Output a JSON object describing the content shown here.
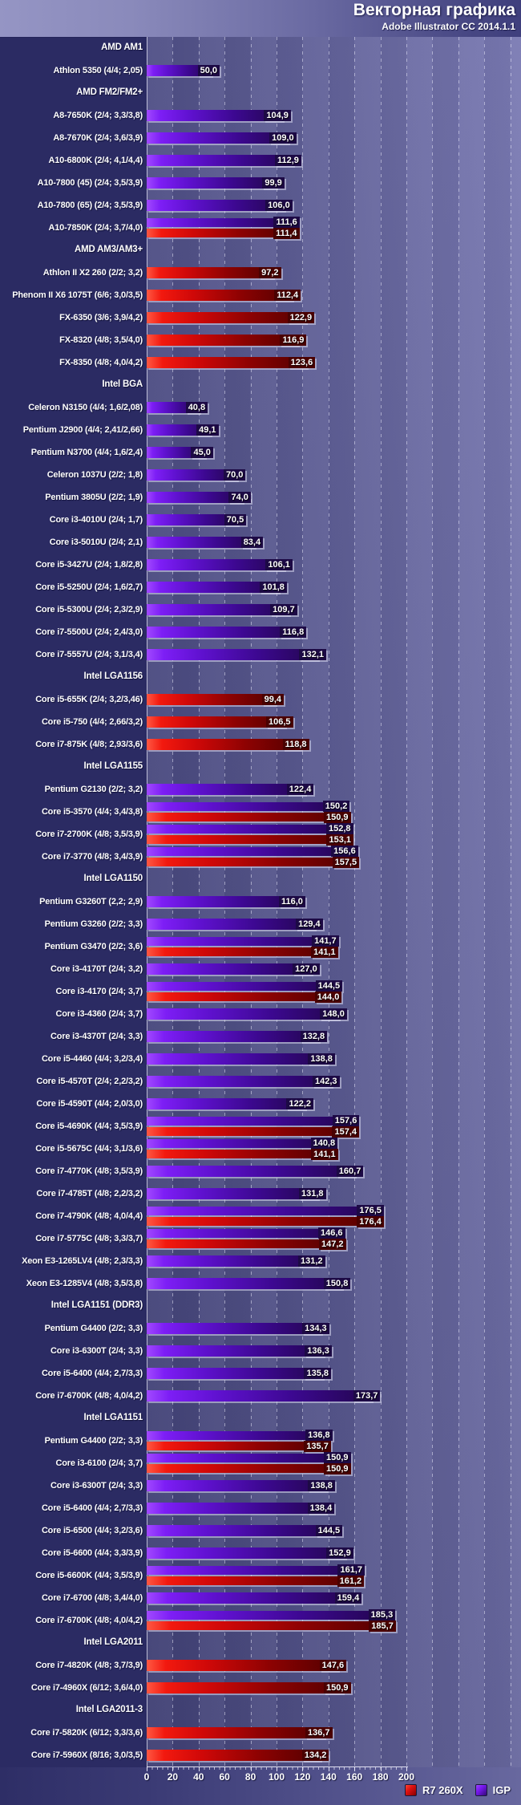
{
  "title": "Векторная графика",
  "subtitle": "Adobe Illustrator CC 2014.1.1",
  "legend": [
    {
      "label": "R7 260X",
      "color": "#dd1111"
    },
    {
      "label": "IGP",
      "color": "#7718ee"
    }
  ],
  "colors": {
    "r7_bright": "#f2190f",
    "r7_dark": "#520000",
    "igp_bright": "#7d1ef5",
    "igp_dark": "#22064e",
    "background_left": "#2b2b63",
    "plot_right": "#7373af"
  },
  "chart_data": {
    "type": "bar",
    "orientation": "horizontal",
    "title": "Векторная графика",
    "subtitle": "Adobe Illustrator CC 2014.1.1",
    "xlim": [
      0,
      200
    ],
    "x_ticks": [
      0,
      20,
      40,
      60,
      80,
      100,
      120,
      140,
      160,
      180,
      200
    ],
    "grid": true,
    "legend_position": "bottom-right",
    "series_names": [
      "R7 260X",
      "IGP"
    ],
    "rows": [
      {
        "header": "AMD AM1"
      },
      {
        "label": "Athlon 5350 (4/4; 2,05)",
        "igp": 50.0,
        "r7": null
      },
      {
        "header": "AMD FM2/FM2+"
      },
      {
        "label": "A8-7650K (2/4; 3,3/3,8)",
        "igp": 104.9,
        "r7": null
      },
      {
        "label": "A8-7670K (2/4; 3,6/3,9)",
        "igp": 109.0,
        "r7": null
      },
      {
        "label": "A10-6800K (2/4; 4,1/4,4)",
        "igp": 112.9,
        "r7": null
      },
      {
        "label": "A10-7800 (45) (2/4; 3,5/3,9)",
        "igp": 99.9,
        "r7": null
      },
      {
        "label": "A10-7800 (65) (2/4; 3,5/3,9)",
        "igp": 106.0,
        "r7": null
      },
      {
        "label": "A10-7850K (2/4; 3,7/4,0)",
        "igp": 111.6,
        "r7": 111.4
      },
      {
        "header": "AMD AM3/AM3+"
      },
      {
        "label": "Athlon II X2 260 (2/2; 3,2)",
        "igp": null,
        "r7": 97.2
      },
      {
        "label": "Phenom II X6 1075T (6/6; 3,0/3,5)",
        "igp": null,
        "r7": 112.4
      },
      {
        "label": "FX-6350 (3/6; 3,9/4,2)",
        "igp": null,
        "r7": 122.9
      },
      {
        "label": "FX-8320 (4/8; 3,5/4,0)",
        "igp": null,
        "r7": 116.9
      },
      {
        "label": "FX-8350 (4/8; 4,0/4,2)",
        "igp": null,
        "r7": 123.6
      },
      {
        "header": "Intel BGA"
      },
      {
        "label": "Celeron N3150 (4/4; 1,6/2,08)",
        "igp": 40.8,
        "r7": null
      },
      {
        "label": "Pentium J2900 (4/4; 2,41/2,66)",
        "igp": 49.1,
        "r7": null
      },
      {
        "label": "Pentium N3700 (4/4; 1,6/2,4)",
        "igp": 45.0,
        "r7": null
      },
      {
        "label": "Celeron 1037U (2/2; 1,8)",
        "igp": 70.0,
        "r7": null
      },
      {
        "label": "Pentium 3805U (2/2; 1,9)",
        "igp": 74.0,
        "r7": null
      },
      {
        "label": "Core i3-4010U (2/4; 1,7)",
        "igp": 70.5,
        "r7": null
      },
      {
        "label": "Core i3-5010U (2/4; 2,1)",
        "igp": 83.4,
        "r7": null
      },
      {
        "label": "Core i5-3427U (2/4; 1,8/2,8)",
        "igp": 106.1,
        "r7": null
      },
      {
        "label": "Core i5-5250U (2/4; 1,6/2,7)",
        "igp": 101.8,
        "r7": null
      },
      {
        "label": "Core i5-5300U (2/4; 2,3/2,9)",
        "igp": 109.7,
        "r7": null
      },
      {
        "label": "Core i7-5500U (2/4; 2,4/3,0)",
        "igp": 116.8,
        "r7": null
      },
      {
        "label": "Core i7-5557U (2/4; 3,1/3,4)",
        "igp": 132.1,
        "r7": null
      },
      {
        "header": "Intel LGA1156"
      },
      {
        "label": "Core i5-655K (2/4; 3,2/3,46)",
        "igp": null,
        "r7": 99.4
      },
      {
        "label": "Core i5-750 (4/4; 2,66/3,2)",
        "igp": null,
        "r7": 106.5
      },
      {
        "label": "Core i7-875K (4/8; 2,93/3,6)",
        "igp": null,
        "r7": 118.8
      },
      {
        "header": "Intel LGA1155"
      },
      {
        "label": "Pentium G2130 (2/2; 3,2)",
        "igp": 122.4,
        "r7": null
      },
      {
        "label": "Core i5-3570 (4/4; 3,4/3,8)",
        "igp": 150.2,
        "r7": 150.9
      },
      {
        "label": "Core i7-2700K (4/8; 3,5/3,9)",
        "igp": 152.8,
        "r7": 153.1
      },
      {
        "label": "Core i7-3770 (4/8; 3,4/3,9)",
        "igp": 156.6,
        "r7": 157.5
      },
      {
        "header": "Intel LGA1150"
      },
      {
        "label": "Pentium G3260T (2,2; 2,9)",
        "igp": 116.0,
        "r7": null
      },
      {
        "label": "Pentium G3260 (2/2; 3,3)",
        "igp": 129.4,
        "r7": null
      },
      {
        "label": "Pentium G3470 (2/2; 3,6)",
        "igp": 141.7,
        "r7": 141.1
      },
      {
        "label": "Core i3-4170T (2/4; 3,2)",
        "igp": 127.0,
        "r7": null
      },
      {
        "label": "Core i3-4170 (2/4; 3,7)",
        "igp": 144.5,
        "r7": 144.0
      },
      {
        "label": "Core i3-4360 (2/4; 3,7)",
        "igp": 148.0,
        "r7": null
      },
      {
        "label": "Core i3-4370T (2/4; 3,3)",
        "igp": 132.8,
        "r7": null
      },
      {
        "label": "Core i5-4460 (4/4; 3,2/3,4)",
        "igp": 138.8,
        "r7": null
      },
      {
        "label": "Core i5-4570T (2/4; 2,2/3,2)",
        "igp": 142.3,
        "r7": null
      },
      {
        "label": "Core i5-4590T (4/4; 2,0/3,0)",
        "igp": 122.2,
        "r7": null
      },
      {
        "label": "Core i5-4690K (4/4; 3,5/3,9)",
        "igp": 157.6,
        "r7": 157.4
      },
      {
        "label": "Core i5-5675C (4/4; 3,1/3,6)",
        "igp": 140.8,
        "r7": 141.1
      },
      {
        "label": "Core i7-4770K (4/8; 3,5/3,9)",
        "igp": 160.7,
        "r7": null
      },
      {
        "label": "Core i7-4785T (4/8; 2,2/3,2)",
        "igp": 131.8,
        "r7": null
      },
      {
        "label": "Core i7-4790K (4/8; 4,0/4,4)",
        "igp": 176.5,
        "r7": 176.4
      },
      {
        "label": "Core i7-5775C (4/8; 3,3/3,7)",
        "igp": 146.6,
        "r7": 147.2
      },
      {
        "label": "Xeon E3-1265LV4 (4/8; 2,3/3,3)",
        "igp": 131.2,
        "r7": null
      },
      {
        "label": "Xeon E3-1285V4 (4/8; 3,5/3,8)",
        "igp": 150.8,
        "r7": null
      },
      {
        "header": "Intel LGA1151 (DDR3)"
      },
      {
        "label": "Pentium G4400 (2/2; 3,3)",
        "igp": 134.3,
        "r7": null
      },
      {
        "label": "Core i3-6300T (2/4; 3,3)",
        "igp": 136.3,
        "r7": null
      },
      {
        "label": "Core i5-6400 (4/4; 2,7/3,3)",
        "igp": 135.8,
        "r7": null
      },
      {
        "label": "Core i7-6700K (4/8; 4,0/4,2)",
        "igp": 173.7,
        "r7": null
      },
      {
        "header": "Intel LGA1151"
      },
      {
        "label": "Pentium G4400 (2/2; 3,3)",
        "igp": 136.8,
        "r7": 135.7
      },
      {
        "label": "Core i3-6100 (2/4; 3,7)",
        "igp": 150.9,
        "r7": 150.9
      },
      {
        "label": "Core i3-6300T (2/4; 3,3)",
        "igp": 138.8,
        "r7": null
      },
      {
        "label": "Core i5-6400  (4/4; 2,7/3,3)",
        "igp": 138.4,
        "r7": null
      },
      {
        "label": "Core i5-6500 (4/4; 3,2/3,6)",
        "igp": 144.5,
        "r7": null
      },
      {
        "label": "Core i5-6600 (4/4; 3,3/3,9)",
        "igp": 152.9,
        "r7": null
      },
      {
        "label": "Core i5-6600K (4/4; 3,5/3,9)",
        "igp": 161.7,
        "r7": 161.2
      },
      {
        "label": "Core i7-6700 (4/8; 3,4/4,0)",
        "igp": 159.4,
        "r7": null
      },
      {
        "label": "Core i7-6700K (4/8; 4,0/4,2)",
        "igp": 185.3,
        "r7": 185.7
      },
      {
        "header": "Intel LGA2011"
      },
      {
        "label": "Core i7-4820K (4/8; 3,7/3,9)",
        "igp": null,
        "r7": 147.6
      },
      {
        "label": "Core i7-4960X (6/12; 3,6/4,0)",
        "igp": null,
        "r7": 150.9
      },
      {
        "header": "Intel LGA2011-3"
      },
      {
        "label": "Core i7-5820K (6/12; 3,3/3,6)",
        "igp": null,
        "r7": 136.7
      },
      {
        "label": "Core i7-5960X (8/16; 3,0/3,5)",
        "igp": null,
        "r7": 134.2
      }
    ]
  }
}
